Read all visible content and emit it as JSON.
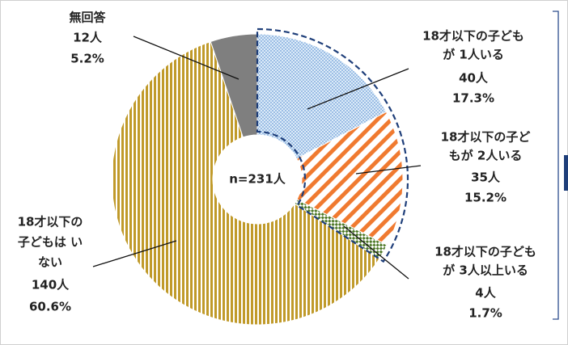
{
  "chart_data": {
    "type": "donut",
    "center_label": "n=231人",
    "categories": [
      [
        "18才以下の子ども",
        "が 1人いる"
      ],
      [
        "18才以下の子ど",
        "もが 2人いる"
      ],
      [
        "18才以下の子ども",
        "が 3人以上いる"
      ],
      [
        "18才以下の",
        "子どもは い",
        "ない"
      ],
      [
        "無回答"
      ]
    ],
    "values": [
      40,
      35,
      4,
      140,
      12
    ],
    "value_labels": [
      "40人",
      "35人",
      "4人",
      "140人",
      "12人"
    ],
    "percents": [
      17.3,
      15.2,
      1.7,
      60.6,
      5.2
    ],
    "percent_labels": [
      "17.3%",
      "15.2%",
      "1.7%",
      "60.6%",
      "5.2%"
    ],
    "colors": [
      "#3a78c8",
      "#f07a30",
      "#4f7a28",
      "#c09a2a",
      "#7f7f7f"
    ],
    "patterns": [
      "dots",
      "diagonal",
      "checker",
      "vertical",
      "solid"
    ]
  }
}
